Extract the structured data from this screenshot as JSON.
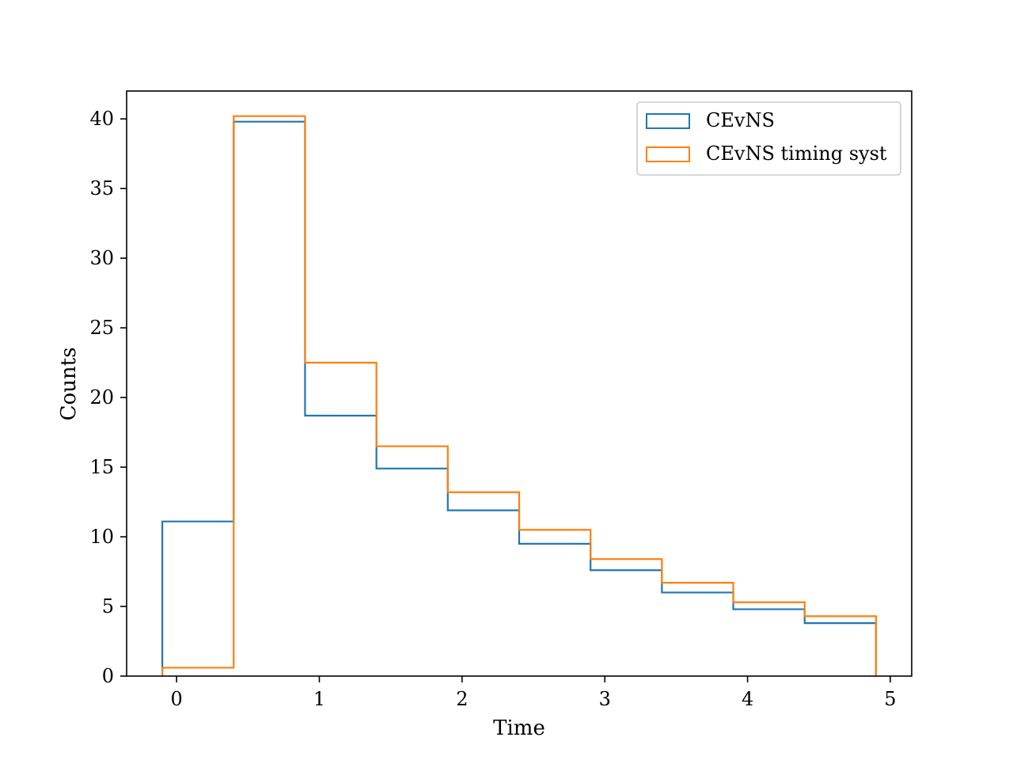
{
  "chart_data": {
    "type": "histogram-step",
    "xlabel": "Time",
    "ylabel": "Counts",
    "xlim": [
      -0.35,
      5.15
    ],
    "ylim": [
      0,
      42
    ],
    "xticks": [
      0,
      1,
      2,
      3,
      4,
      5
    ],
    "yticks": [
      0,
      5,
      10,
      15,
      20,
      25,
      30,
      35,
      40
    ],
    "bin_edges": [
      -0.1,
      0.4,
      0.9,
      1.4,
      1.9,
      2.4,
      2.9,
      3.4,
      3.9,
      4.4,
      4.9
    ],
    "series": [
      {
        "name": "CEvNS",
        "color": "#1f77b4",
        "values": [
          11.1,
          39.8,
          18.7,
          14.9,
          11.9,
          9.5,
          7.6,
          6.0,
          4.8,
          3.8
        ]
      },
      {
        "name": "CEvNS timing syst",
        "color": "#ff7f0e",
        "values": [
          0.6,
          40.2,
          22.5,
          16.5,
          13.2,
          10.5,
          8.4,
          6.7,
          5.3,
          4.3
        ]
      }
    ],
    "legend_position": "top-right"
  }
}
